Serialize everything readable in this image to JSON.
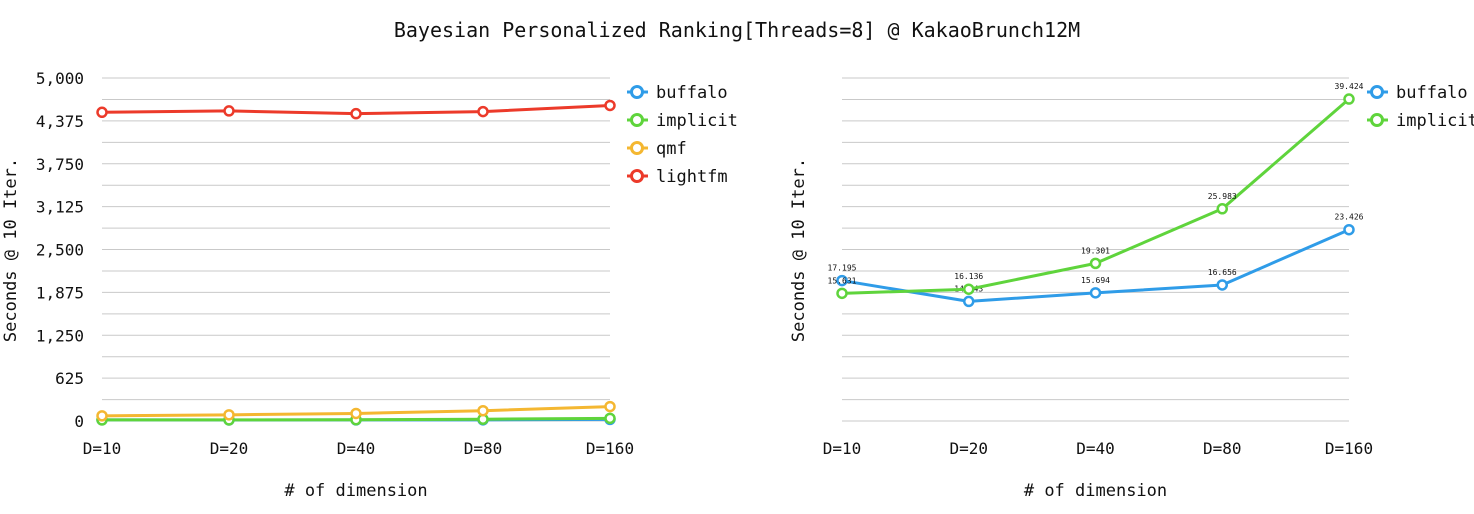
{
  "title": "Bayesian Personalized Ranking[Threads=8] @ KakaoBrunch12M",
  "colors": {
    "buffalo": "#2f9ce8",
    "implicit": "#5fd43c",
    "qmf": "#f4b731",
    "lightfm": "#ec3a2a"
  },
  "chart_data": [
    {
      "type": "line",
      "xlabel": "# of dimension",
      "ylabel": "Seconds @ 10 Iter.",
      "categories": [
        "D=10",
        "D=20",
        "D=40",
        "D=80",
        "D=160"
      ],
      "ylim": [
        0,
        5000
      ],
      "yticks": [
        0,
        625,
        1250,
        1875,
        2500,
        3125,
        3750,
        4375,
        5000
      ],
      "ytick_labels": [
        "0",
        "625",
        "1,250",
        "1,875",
        "2,500",
        "3,125",
        "3,750",
        "4,375",
        "5,000"
      ],
      "grid": true,
      "legend": "top-right-outside",
      "series": [
        {
          "name": "buffalo",
          "color": "#2f9ce8",
          "values": [
            17,
            15,
            16,
            17,
            23
          ]
        },
        {
          "name": "implicit",
          "color": "#5fd43c",
          "values": [
            16,
            16,
            19,
            26,
            39
          ]
        },
        {
          "name": "qmf",
          "color": "#f4b731",
          "values": [
            75,
            90,
            110,
            150,
            210
          ]
        },
        {
          "name": "lightfm",
          "color": "#ec3a2a",
          "values": [
            4500,
            4520,
            4480,
            4510,
            4600
          ]
        }
      ]
    },
    {
      "type": "line",
      "xlabel": "# of dimension",
      "ylabel": "Seconds @ 10 Iter.",
      "categories": [
        "D=10",
        "D=20",
        "D=40",
        "D=80",
        "D=160"
      ],
      "ylim": [
        0,
        42
      ],
      "grid": true,
      "legend": "top-right-outside",
      "data_labels": true,
      "series": [
        {
          "name": "buffalo",
          "color": "#2f9ce8",
          "values": [
            17.195,
            14.643,
            15.694,
            16.656,
            23.426
          ],
          "labels": [
            "17.195",
            "14.643",
            "15.694",
            "16.656",
            "23.426"
          ]
        },
        {
          "name": "implicit",
          "color": "#5fd43c",
          "values": [
            15.631,
            16.136,
            19.301,
            25.983,
            39.424
          ],
          "labels": [
            "15.631",
            "16.136",
            "19.301",
            "25.983",
            "39.424"
          ]
        }
      ]
    }
  ]
}
